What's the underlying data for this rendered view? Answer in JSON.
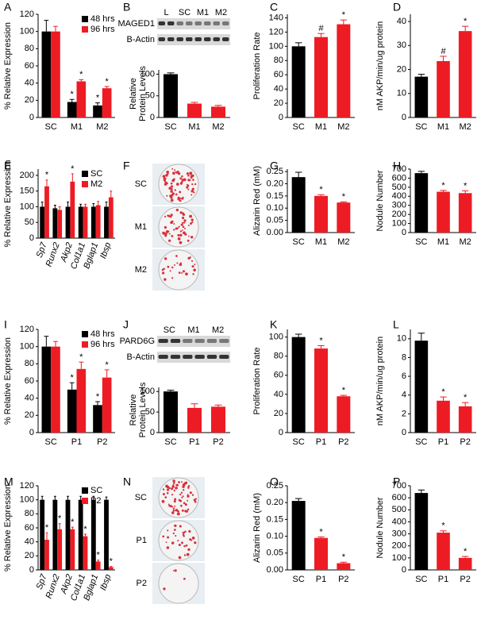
{
  "chart_data": [
    {
      "type": "bar",
      "panel": "A",
      "ylabel": "% Relative Expression",
      "categories": [
        "SC",
        "M1",
        "M2"
      ],
      "legend": "upper right",
      "series": [
        {
          "name": "48 hrs",
          "color": "#000000",
          "values": [
            100,
            18,
            14
          ],
          "errors": [
            13,
            3,
            3
          ],
          "markers": [
            null,
            "*",
            "*"
          ]
        },
        {
          "name": "96 hrs",
          "color": "#ed1c24",
          "values": [
            100,
            42,
            34
          ],
          "errors": [
            6,
            2,
            2
          ],
          "markers": [
            null,
            "*",
            "*"
          ]
        }
      ],
      "ylim": [
        0,
        120
      ],
      "yticks": [
        0,
        20,
        40,
        60,
        80,
        100,
        120
      ]
    },
    {
      "type": "bar",
      "panel": "B",
      "ylabel": [
        "Relative",
        "Protein Levels"
      ],
      "categories": [
        "SC",
        "M1",
        "M2"
      ],
      "blot": {
        "lanes": [
          "L",
          "SC",
          "M1",
          "M2"
        ],
        "rows": [
          "MAGED1",
          "B-Actin"
        ]
      },
      "series": [
        {
          "colors": [
            "#000000",
            "#ed1c24",
            "#ed1c24"
          ],
          "values": [
            100,
            32,
            25
          ],
          "errors": [
            3,
            3,
            3
          ]
        }
      ],
      "ylim": [
        0,
        110
      ],
      "yticks": [
        0,
        50,
        100
      ]
    },
    {
      "type": "bar",
      "panel": "C",
      "ylabel": "Proliferation Rate",
      "categories": [
        "SC",
        "M1",
        "M2"
      ],
      "series": [
        {
          "colors": [
            "#000000",
            "#ed1c24",
            "#ed1c24"
          ],
          "values": [
            100,
            113,
            131
          ],
          "errors": [
            5,
            5,
            6
          ],
          "markers": [
            null,
            "#",
            "*"
          ]
        }
      ],
      "ylim": [
        0,
        145
      ],
      "yticks": [
        0,
        20,
        40,
        60,
        80,
        100,
        120,
        140
      ]
    },
    {
      "type": "bar",
      "panel": "D",
      "ylabel": "nM AKP/min/ug protein",
      "categories": [
        "SC",
        "M1",
        "M2"
      ],
      "series": [
        {
          "colors": [
            "#000000",
            "#ed1c24",
            "#ed1c24"
          ],
          "values": [
            17,
            23.5,
            36
          ],
          "errors": [
            1,
            2,
            2
          ],
          "markers": [
            null,
            "#",
            "*"
          ]
        }
      ],
      "ylim": [
        0,
        43
      ],
      "yticks": [
        0,
        10,
        20,
        30,
        40
      ]
    },
    {
      "type": "bar",
      "panel": "E",
      "ylabel": "% Relative Expression",
      "italic_categories": true,
      "legend": "upper right",
      "categories": [
        "Sp7",
        "Runx2",
        "Akp2",
        "Col1a1",
        "Bglap1",
        "Ibsp"
      ],
      "series": [
        {
          "name": "SC",
          "color": "#000000",
          "values": [
            100,
            95,
            100,
            100,
            100,
            100
          ],
          "errors": [
            15,
            10,
            15,
            8,
            10,
            15
          ]
        },
        {
          "name": "M2",
          "color": "#ed1c24",
          "values": [
            165,
            90,
            180,
            100,
            105,
            130
          ],
          "errors": [
            20,
            10,
            25,
            8,
            12,
            20
          ],
          "markers": [
            "*",
            null,
            "*",
            null,
            null,
            null
          ]
        }
      ],
      "ylim": [
        0,
        220
      ],
      "yticks": [
        0,
        50,
        100,
        150,
        200
      ]
    },
    {
      "type": "bar",
      "panel": "G",
      "ylabel": "Alizarin Red (mM)",
      "categories": [
        "SC",
        "M1",
        "M2"
      ],
      "series": [
        {
          "colors": [
            "#000000",
            "#ed1c24",
            "#ed1c24"
          ],
          "values": [
            0.227,
            0.15,
            0.123
          ],
          "errors": [
            0.02,
            0.005,
            0.003
          ],
          "markers": [
            null,
            "*",
            "*"
          ]
        }
      ],
      "ylim": [
        0,
        0.26
      ],
      "yticks": [
        {
          "value": 0,
          "label": "0.00"
        },
        0.05,
        {
          "value": 0.1,
          "label": "0.10"
        },
        0.15,
        {
          "value": 0.2,
          "label": "0.20"
        },
        0.25
      ]
    },
    {
      "type": "bar",
      "panel": "H",
      "ylabel": "Nodule Number",
      "categories": [
        "SC",
        "M1",
        "M2"
      ],
      "series": [
        {
          "colors": [
            "#000000",
            "#ed1c24",
            "#ed1c24"
          ],
          "values": [
            655,
            450,
            435
          ],
          "errors": [
            20,
            15,
            25
          ],
          "markers": [
            null,
            "*",
            "*"
          ]
        }
      ],
      "ylim": [
        0,
        700
      ],
      "yticks": [
        0,
        100,
        200,
        300,
        400,
        500,
        600,
        700
      ]
    },
    {
      "type": "bar",
      "panel": "I",
      "ylabel": "% Relative Expression",
      "categories": [
        "SC",
        "P1",
        "P2"
      ],
      "legend": "upper right",
      "series": [
        {
          "name": "48 hrs",
          "color": "#000000",
          "values": [
            100,
            50,
            32
          ],
          "errors": [
            12,
            8,
            4
          ],
          "markers": [
            null,
            "*",
            "*"
          ]
        },
        {
          "name": "96 hrs",
          "color": "#ed1c24",
          "values": [
            100,
            74,
            64
          ],
          "errors": [
            6,
            8,
            9
          ],
          "markers": [
            null,
            "*",
            "*"
          ]
        }
      ],
      "ylim": [
        0,
        120
      ],
      "yticks": [
        0,
        20,
        40,
        60,
        80,
        100,
        120
      ]
    },
    {
      "type": "bar",
      "panel": "J",
      "ylabel": [
        "Relative",
        "Protein Levels"
      ],
      "categories": [
        "SC",
        "P1",
        "P2"
      ],
      "blot": {
        "lanes": [
          "SC",
          "M1",
          "M2"
        ],
        "rows": [
          "PARD6G",
          "B-Actin"
        ]
      },
      "series": [
        {
          "colors": [
            "#000000",
            "#ed1c24",
            "#ed1c24"
          ],
          "values": [
            100,
            60,
            63
          ],
          "errors": [
            3,
            10,
            4
          ]
        }
      ],
      "ylim": [
        0,
        110
      ],
      "yticks": [
        0,
        50,
        100
      ]
    },
    {
      "type": "bar",
      "panel": "K",
      "ylabel": "Proliferation Rate",
      "categories": [
        "SC",
        "P1",
        "P2"
      ],
      "series": [
        {
          "colors": [
            "#000000",
            "#ed1c24",
            "#ed1c24"
          ],
          "values": [
            100,
            88,
            38
          ],
          "errors": [
            3,
            3,
            1
          ],
          "markers": [
            null,
            "*",
            "*"
          ]
        }
      ],
      "ylim": [
        0,
        108
      ],
      "yticks": [
        0,
        20,
        40,
        60,
        80,
        100
      ]
    },
    {
      "type": "bar",
      "panel": "L",
      "ylabel": "nM AKP/min/ug protein",
      "categories": [
        "SC",
        "P1",
        "P2"
      ],
      "series": [
        {
          "colors": [
            "#000000",
            "#ed1c24",
            "#ed1c24"
          ],
          "values": [
            9.8,
            3.4,
            2.8
          ],
          "errors": [
            0.8,
            0.4,
            0.4
          ],
          "markers": [
            null,
            "*",
            "*"
          ]
        }
      ],
      "ylim": [
        0,
        11
      ],
      "yticks": [
        0,
        2,
        4,
        6,
        8,
        10
      ]
    },
    {
      "type": "bar",
      "panel": "M",
      "ylabel": "% Relative Expression",
      "italic_categories": true,
      "legend": "upper right",
      "categories": [
        "Sp7",
        "Runx2",
        "Akp2",
        "Col1a1",
        "Bglap1",
        "Ibsp"
      ],
      "series": [
        {
          "name": "SC",
          "color": "#000000",
          "values": [
            100,
            100,
            100,
            100,
            100,
            100
          ],
          "errors": [
            5,
            5,
            5,
            5,
            5,
            4
          ]
        },
        {
          "name": "P2",
          "color": "#ed1c24",
          "values": [
            43,
            58,
            58,
            48,
            12,
            4
          ],
          "errors": [
            10,
            8,
            3,
            3,
            2,
            1
          ],
          "markers": [
            "*",
            "*",
            "*",
            "*",
            "*",
            "*"
          ]
        }
      ],
      "ylim": [
        0,
        120
      ],
      "yticks": [
        0,
        20,
        40,
        60,
        80,
        100,
        120
      ]
    },
    {
      "type": "bar",
      "panel": "O",
      "ylabel": "Alizarin Red (mM)",
      "categories": [
        "SC",
        "P1",
        "P2"
      ],
      "series": [
        {
          "colors": [
            "#000000",
            "#ed1c24",
            "#ed1c24"
          ],
          "values": [
            0.205,
            0.095,
            0.02
          ],
          "errors": [
            0.007,
            0.003,
            0.003
          ],
          "markers": [
            null,
            "*",
            "*"
          ]
        }
      ],
      "ylim": [
        0,
        0.25
      ],
      "yticks": [
        {
          "value": 0,
          "label": "0.00"
        },
        0.05,
        {
          "value": 0.1,
          "label": "0.10"
        },
        0.15,
        {
          "value": 0.2,
          "label": "0.20"
        },
        0.25
      ]
    },
    {
      "type": "bar",
      "panel": "P",
      "ylabel": "Nodule Number",
      "categories": [
        "SC",
        "P1",
        "P2"
      ],
      "series": [
        {
          "colors": [
            "#000000",
            "#ed1c24",
            "#ed1c24"
          ],
          "values": [
            640,
            310,
            100
          ],
          "errors": [
            25,
            15,
            12
          ],
          "markers": [
            null,
            "*",
            "*"
          ]
        }
      ],
      "ylim": [
        0,
        700
      ],
      "yticks": [
        0,
        100,
        200,
        300,
        400,
        500,
        600,
        700
      ]
    }
  ],
  "images": [
    {
      "panel": "F",
      "labels": [
        "SC",
        "M1",
        "M2"
      ]
    },
    {
      "panel": "N",
      "labels": [
        "SC",
        "P1",
        "P2"
      ]
    }
  ]
}
